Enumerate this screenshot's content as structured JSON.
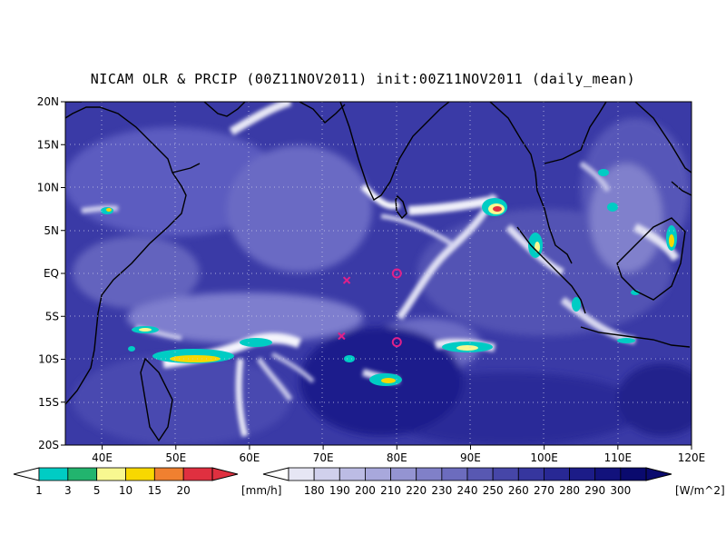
{
  "title": "NICAM OLR & PRCIP (00Z11NOV2011) init:00Z11NOV2011 (daily_mean)",
  "map": {
    "lat_labels": [
      "20N",
      "15N",
      "10N",
      "5N",
      "EQ",
      "5S",
      "10S",
      "15S",
      "20S"
    ],
    "lon_labels": [
      "40E",
      "50E",
      "60E",
      "70E",
      "80E",
      "90E",
      "100E",
      "110E",
      "120E"
    ],
    "lat_range": [
      -20,
      20
    ],
    "lon_range": [
      35,
      120
    ],
    "grid": "dotted",
    "markers": [
      {
        "type": "circle",
        "lon": 80,
        "lat": 0,
        "color": "#e0208a"
      },
      {
        "type": "circle",
        "lon": 80,
        "lat": -8,
        "color": "#e0208a"
      },
      {
        "type": "cross",
        "lon": 73.2,
        "lat": -0.8,
        "color": "#e0208a"
      },
      {
        "type": "cross",
        "lon": 72.5,
        "lat": -7.3,
        "color": "#e0208a"
      }
    ]
  },
  "precip_colorbar": {
    "unit": "[mm/h]",
    "ticks": [
      "1",
      "3",
      "5",
      "10",
      "15",
      "20"
    ],
    "colors": [
      "#00ccc4",
      "#22b46e",
      "#f8f890",
      "#f8d800",
      "#f08030",
      "#e03040"
    ]
  },
  "olr_colorbar": {
    "unit": "[W/m^2]",
    "ticks": [
      "180",
      "190",
      "200",
      "210",
      "220",
      "230",
      "240",
      "250",
      "260",
      "270",
      "280",
      "290",
      "300"
    ],
    "colors": [
      "#e6e6f4",
      "#d0d0ec",
      "#bcbce4",
      "#a8a8dc",
      "#9494d2",
      "#8080c8",
      "#6c6cbe",
      "#5858b2",
      "#4646a8",
      "#36369e",
      "#282894",
      "#1c1c88",
      "#12127c",
      "#0a0a6e"
    ]
  }
}
